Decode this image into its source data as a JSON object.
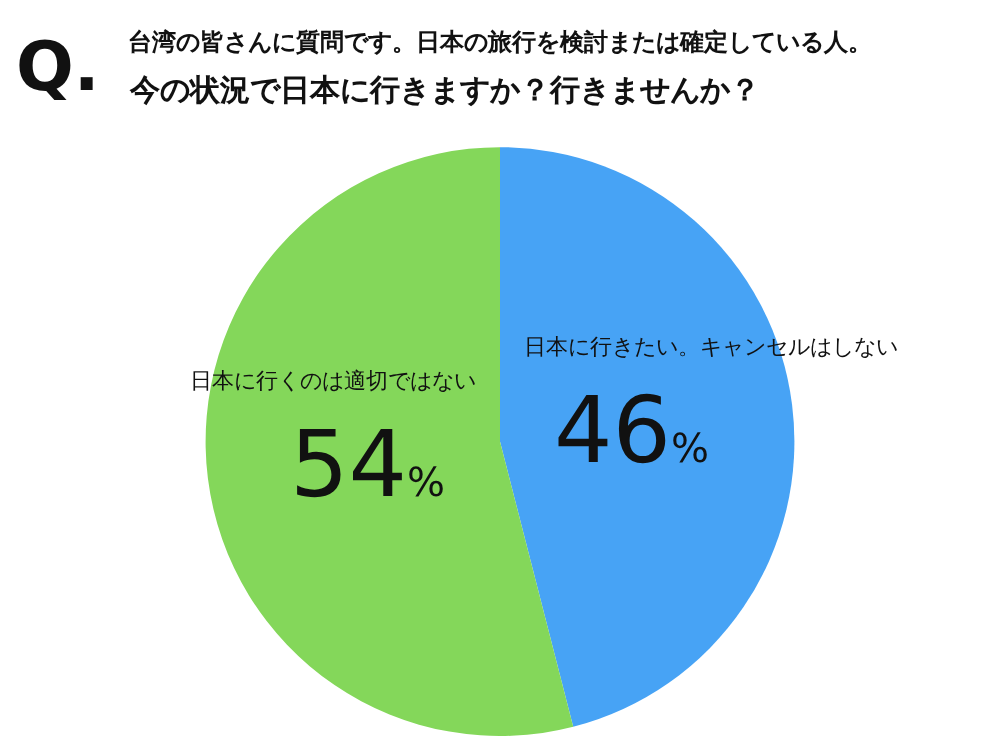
{
  "chart_data": {
    "type": "pie",
    "title": "Q.",
    "subtitle": "台湾の皆さんに質問です。日本の旅行を検討または確定している人。",
    "annotations": [
      "今の状況で日本に行きますか？行きませんか？"
    ],
    "categories": [
      "日本に行きたい。キャンセルはしない",
      "日本に行くのは適切ではない"
    ],
    "values": [
      46,
      54
    ],
    "colors": [
      "#47a3f5",
      "#84d75a"
    ],
    "value_labels": [
      "46%",
      "54%"
    ],
    "legend": false
  }
}
